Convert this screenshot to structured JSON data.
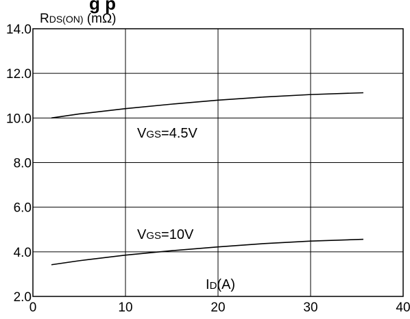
{
  "cut_title_fragment": "g  p",
  "chart_data": {
    "type": "line",
    "ylabel": {
      "main": "R",
      "sub": "DS(ON)",
      "unit": " (mΩ)"
    },
    "xlabel": {
      "main": "I",
      "sub": "D",
      "unit": "(A)"
    },
    "xlim": [
      0,
      40
    ],
    "ylim": [
      2.0,
      14.0
    ],
    "x_ticks": [
      "0",
      "10",
      "20",
      "30",
      "40"
    ],
    "y_ticks": [
      "2.0",
      "4.0",
      "6.0",
      "8.0",
      "10.0",
      "12.0",
      "14.0"
    ],
    "grid": true,
    "series": [
      {
        "name": "4.5V",
        "label": {
          "main": "V",
          "sub": "GS",
          "rest": "=4.5V"
        },
        "x": [
          2,
          5,
          10,
          15,
          20,
          25,
          30,
          35.7
        ],
        "y": [
          10.0,
          10.18,
          10.42,
          10.62,
          10.8,
          10.94,
          11.05,
          11.13
        ]
      },
      {
        "name": "10V",
        "label": {
          "main": "V",
          "sub": "GS",
          "rest": "=10V"
        },
        "x": [
          2,
          5,
          10,
          15,
          20,
          25,
          30,
          35.7
        ],
        "y": [
          3.42,
          3.6,
          3.85,
          4.05,
          4.22,
          4.37,
          4.48,
          4.56
        ]
      }
    ],
    "line_color": "#000000",
    "grid_color": "#000000"
  }
}
